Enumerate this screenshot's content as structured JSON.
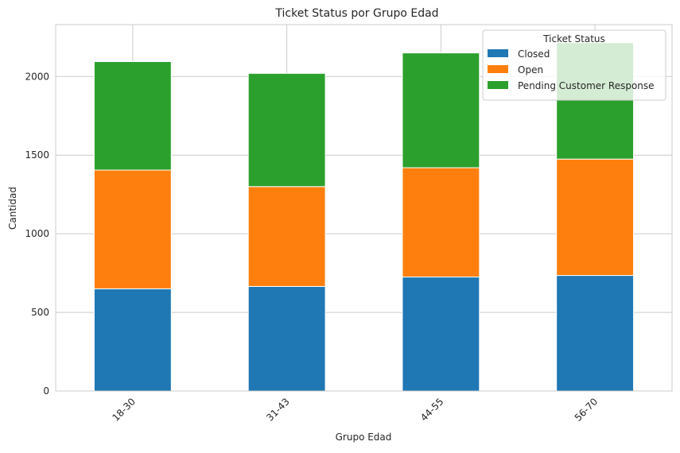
{
  "chart_data": {
    "type": "bar",
    "stacked": true,
    "title": "Ticket Status por Grupo Edad",
    "xlabel": "Grupo Edad",
    "ylabel": "Cantidad",
    "categories": [
      "18-30",
      "31-43",
      "44-55",
      "56-70"
    ],
    "series": [
      {
        "name": "Closed",
        "color": "#1f77b4",
        "values": [
          650,
          665,
          725,
          735
        ]
      },
      {
        "name": "Open",
        "color": "#ff7f0e",
        "values": [
          755,
          635,
          695,
          740
        ]
      },
      {
        "name": "Pending Customer Response",
        "color": "#2ca02c",
        "values": [
          690,
          720,
          730,
          740
        ]
      }
    ],
    "ylim": [
      0,
      2330
    ],
    "yticks": [
      0,
      500,
      1000,
      1500,
      2000
    ],
    "grid": true,
    "legend": {
      "title": "Ticket Status",
      "position": "top-right"
    }
  }
}
